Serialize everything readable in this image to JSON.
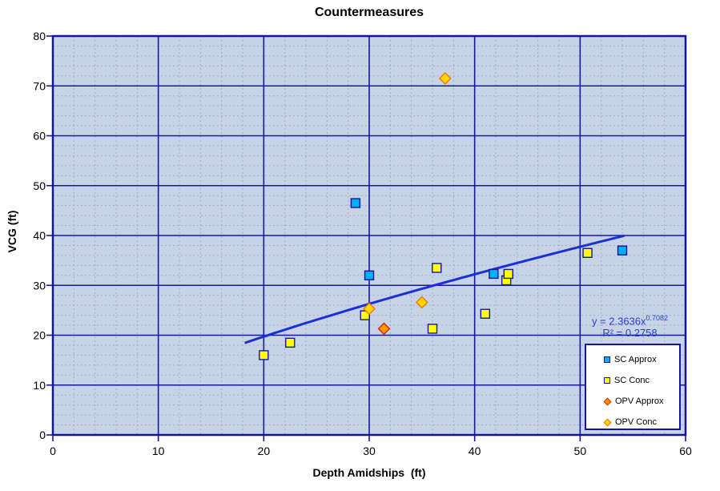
{
  "chart_data": {
    "type": "scatter",
    "title": "Countermeasures",
    "xlabel": "Depth Amidships  (ft)",
    "ylabel": "VCG (ft)",
    "xlim": [
      0,
      60
    ],
    "ylim": [
      0,
      80
    ],
    "x_major_step": 10,
    "y_major_step": 10,
    "x_minor_step": 2,
    "y_minor_step": 2,
    "grid": {
      "major": true,
      "minor": true
    },
    "legend_position": "inside-bottom-right",
    "x_tick_labels": [
      "0",
      "10",
      "20",
      "30",
      "40",
      "50",
      "60"
    ],
    "y_tick_labels": [
      "0",
      "10",
      "20",
      "30",
      "40",
      "50",
      "60",
      "70",
      "80"
    ],
    "series": [
      {
        "name": "SC Approx",
        "marker": "square",
        "fill": "#00b0f0",
        "stroke": "#16169c",
        "points": [
          [
            28.7,
            46.5
          ],
          [
            30,
            32
          ],
          [
            41.8,
            32.3
          ],
          [
            54,
            37
          ]
        ]
      },
      {
        "name": "SC Conc",
        "marker": "square",
        "fill": "#ffff00",
        "stroke": "#16169c",
        "points": [
          [
            20,
            16
          ],
          [
            22.5,
            18.5
          ],
          [
            29.6,
            24
          ],
          [
            36,
            21.3
          ],
          [
            36.4,
            33.5
          ],
          [
            41,
            24.3
          ],
          [
            43,
            31
          ],
          [
            43.2,
            32.3
          ],
          [
            50.7,
            36.5
          ]
        ]
      },
      {
        "name": "OPV Approx",
        "marker": "diamond",
        "fill": "#ff9300",
        "stroke": "#cc2e00",
        "points": [
          [
            31.4,
            21.3
          ]
        ]
      },
      {
        "name": "OPV Conc",
        "marker": "diamond",
        "fill": "#ffd800",
        "stroke": "#f07800",
        "points": [
          [
            30,
            25.3
          ],
          [
            35,
            26.6
          ],
          [
            37.2,
            71.5
          ]
        ]
      }
    ],
    "trendline": {
      "type": "power",
      "coefficient": 2.3636,
      "exponent": 0.7082,
      "x_start": 18.2,
      "x_end": 54.3,
      "color": "#1c2fd6",
      "equation_prefix": "y = 2.3636x",
      "equation_exponent": "0.7082",
      "r_squared_label": "R² = 0.2758"
    },
    "colors": {
      "plot_background": "#c7d4e8",
      "major_gridline": "#1717a0",
      "minor_gridline": "#9aa2aa",
      "axis": "#1414a0",
      "tick_label": "#000000",
      "equation_text": "#2b3cc8",
      "legend_border": "#16169c",
      "legend_background": "#ffffff"
    }
  }
}
